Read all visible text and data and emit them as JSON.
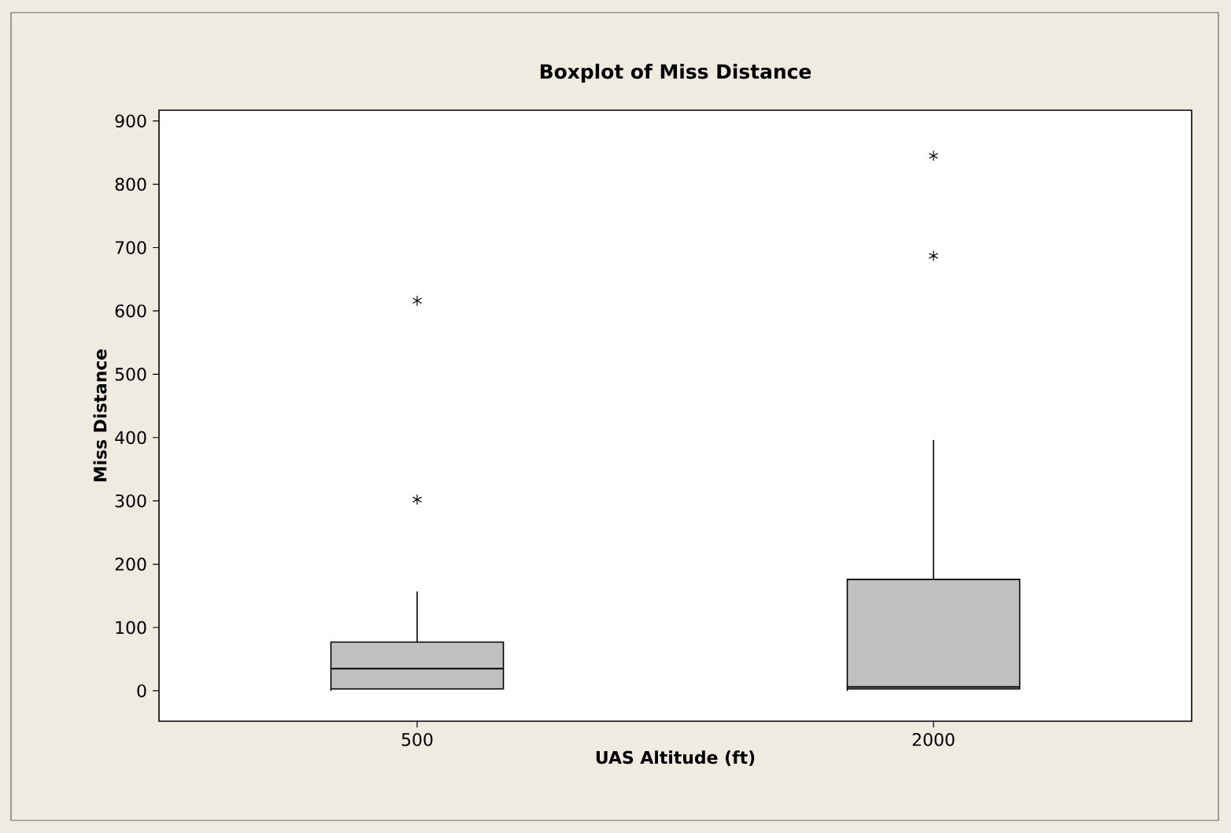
{
  "chart_data": {
    "type": "box",
    "title": "Boxplot of Miss Distance",
    "xlabel": "UAS Altitude (ft)",
    "ylabel": "Miss Distance",
    "categories": [
      "500",
      "2000"
    ],
    "boxes": [
      {
        "low": 3,
        "q1": 3,
        "median": 35,
        "q3": 77,
        "high": 157,
        "outliers": [
          302,
          616
        ]
      },
      {
        "low": 3,
        "q1": 3,
        "median": 6,
        "q3": 176,
        "high": 396,
        "outliers": [
          687,
          845
        ]
      }
    ],
    "color": "#c0c0c0",
    "ylim": [
      -48,
      917
    ],
    "yticks": [
      0,
      100,
      200,
      300,
      400,
      500,
      600,
      700,
      800,
      900
    ]
  }
}
